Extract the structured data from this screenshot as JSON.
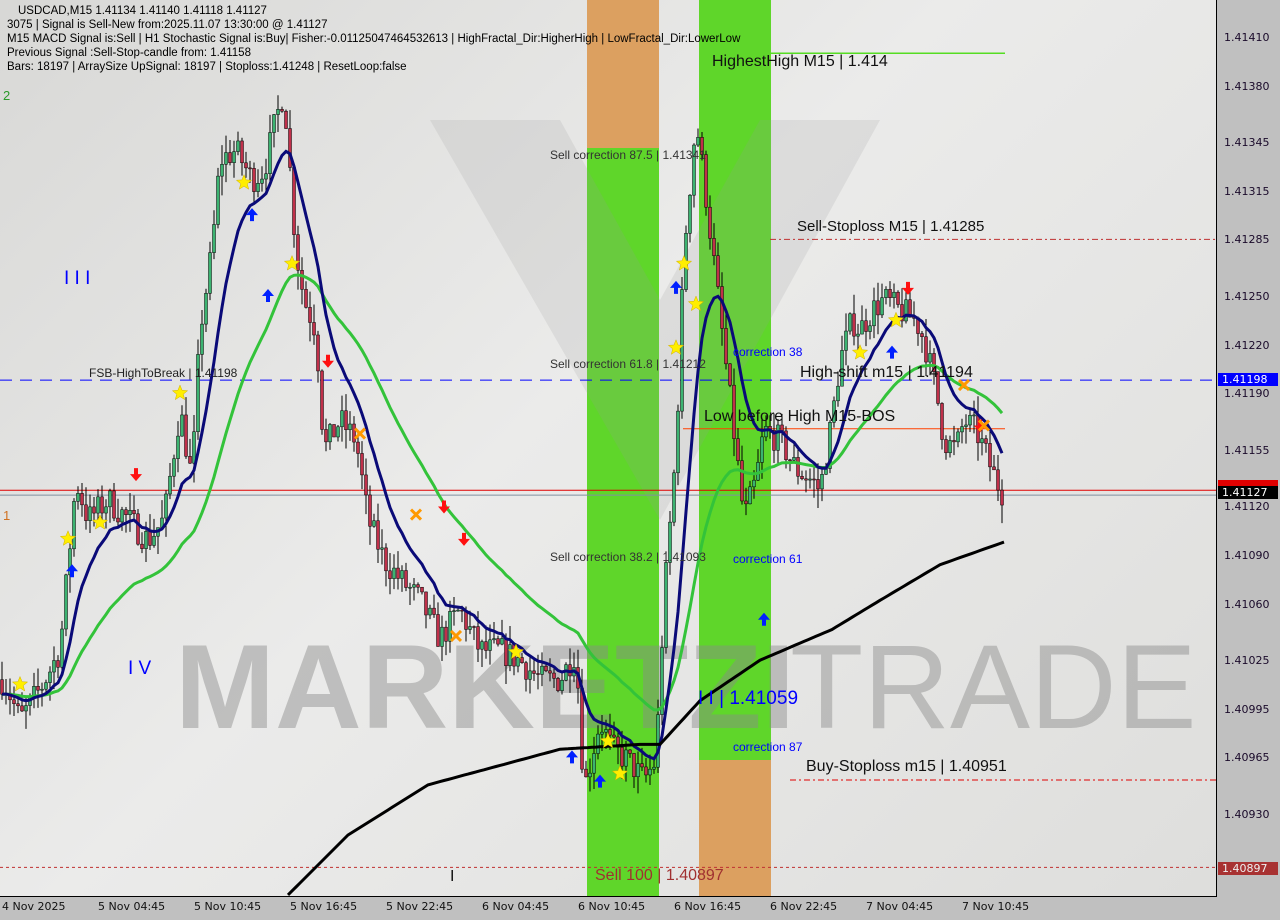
{
  "header": {
    "line1": "USDCAD,M15  1.41134 1.41140 1.41118 1.41127",
    "line2": "3075 | Signal is Sell-New from:2025.11.07 13:30:00 @ 1.41127",
    "line3": "M15 MACD Signal is:Sell | H1 Stochastic Signal is:Buy| Fisher:-0.01125047464532613 | HighFractal_Dir:HigherHigh | LowFractal_Dir:LowerLow",
    "line4": "Previous Signal :Sell-Stop-candle from: 1.41158",
    "line5": "Bars: 18197 | ArraySize UpSignal: 18197 | Stoploss:1.41248 | ResetLoop:false"
  },
  "watermark": {
    "left": "MARKETZI",
    "right": "TRADE"
  },
  "labels": {
    "highest_high": "HighestHigh   M15 | 1.414",
    "sell_stoploss": "Sell-Stoploss M15 | 1.41285",
    "sell_corr_875": "Sell correction 87.5 | 1.41341",
    "sell_corr_618": "Sell correction 61.8 | 1.41212",
    "sell_corr_382": "Sell correction 38.2 | 1.41093",
    "correction_38": "correction 38",
    "correction_61": "correction 61",
    "correction_87": "correction 87",
    "high_shift": "High-shift m15 | 1.41194",
    "low_before_high": "Low before High   M15-BOS",
    "fsb": "FSB-HighToBreak | 1.41198",
    "buy_stoploss": "Buy-Stoploss m15 | 1.40951",
    "sell_100": "Sell 100 | 1.40897",
    "wave_ii": "I I | 1.41059",
    "wave_iii": "I I I",
    "wave_iv": "I V",
    "wave_i": "I",
    "num_2": "2",
    "num_1": "1"
  },
  "price_tags": {
    "fsb": "1.41198",
    "current": "1.41127",
    "sell100": "1.40897"
  },
  "colors": {
    "bull": "#3cb371",
    "bear": "#c0304a",
    "fast_ma": "#0a0a78",
    "mid_ma": "#33c33a",
    "slow_ma": "#000000",
    "band_green": "#5fd62a",
    "band_orange": "#dca060",
    "fsb_line": "#0000ff",
    "price_line": "#e00000"
  },
  "chart_data": {
    "type": "candlestick",
    "symbol": "USDCAD",
    "timeframe": "M15",
    "ylim": [
      1.4087,
      1.4143
    ],
    "y_ticks": [
      "1.41410",
      "1.41380",
      "1.41345",
      "1.41315",
      "1.41285",
      "1.41250",
      "1.41220",
      "1.41190",
      "1.41155",
      "1.41120",
      "1.41090",
      "1.41060",
      "1.41025",
      "1.40995",
      "1.40965",
      "1.40930"
    ],
    "x_ticks": [
      "4 Nov 2025",
      "5 Nov 04:45",
      "5 Nov 10:45",
      "5 Nov 16:45",
      "5 Nov 22:45",
      "6 Nov 04:45",
      "6 Nov 10:45",
      "6 Nov 16:45",
      "6 Nov 22:45",
      "7 Nov 04:45",
      "7 Nov 10:45"
    ],
    "close_path": [
      [
        "11-04 23:00",
        1.41013
      ],
      [
        "11-05 00:00",
        1.40988
      ],
      [
        "11-05 01:15",
        1.41007
      ],
      [
        "11-05 02:30",
        1.41031
      ],
      [
        "11-05 03:30",
        1.41136
      ],
      [
        "11-05 04:15",
        1.41112
      ],
      [
        "11-05 05:30",
        1.41124
      ],
      [
        "11-05 06:45",
        1.41112
      ],
      [
        "11-05 08:00",
        1.41099
      ],
      [
        "11-05 09:00",
        1.41112
      ],
      [
        "11-05 10:00",
        1.4118
      ],
      [
        "11-05 10:45",
        1.41136
      ],
      [
        "11-05 11:15",
        1.41229
      ],
      [
        "11-05 12:00",
        1.41278
      ],
      [
        "11-05 12:30",
        1.41334
      ],
      [
        "11-05 13:30",
        1.4134
      ],
      [
        "11-05 14:30",
        1.41322
      ],
      [
        "11-05 15:15",
        1.41328
      ],
      [
        "11-05 16:00",
        1.41359
      ],
      [
        "11-05 16:30",
        1.41377
      ],
      [
        "11-05 17:15",
        1.41278
      ],
      [
        "11-05 17:45",
        1.41248
      ],
      [
        "11-05 18:30",
        1.41229
      ],
      [
        "11-05 19:00",
        1.41155
      ],
      [
        "11-05 20:00",
        1.41173
      ],
      [
        "11-05 21:00",
        1.41161
      ],
      [
        "11-05 21:45",
        1.41112
      ],
      [
        "11-05 22:45",
        1.41087
      ],
      [
        "11-05 23:45",
        1.41075
      ],
      [
        "11-06 01:00",
        1.41062
      ],
      [
        "11-06 02:15",
        1.41038
      ],
      [
        "11-06 03:30",
        1.41056
      ],
      [
        "11-06 04:45",
        1.41031
      ],
      [
        "11-06 06:00",
        1.41031
      ],
      [
        "11-06 07:15",
        1.41025
      ],
      [
        "11-06 08:30",
        1.41013
      ],
      [
        "11-06 09:45",
        1.41013
      ],
      [
        "11-06 10:45",
        1.41031
      ],
      [
        "11-06 11:15",
        1.40945
      ],
      [
        "11-06 12:15",
        1.40988
      ],
      [
        "11-06 13:00",
        1.4097
      ],
      [
        "11-06 14:00",
        1.40963
      ],
      [
        "11-06 15:00",
        1.40951
      ],
      [
        "11-06 15:45",
        1.40963
      ],
      [
        "11-06 16:15",
        1.41062
      ],
      [
        "11-06 17:00",
        1.41155
      ],
      [
        "11-06 17:30",
        1.41278
      ],
      [
        "11-06 18:15",
        1.41359
      ],
      [
        "11-06 18:45",
        1.41322
      ],
      [
        "11-06 19:30",
        1.4126
      ],
      [
        "11-06 20:00",
        1.41217
      ],
      [
        "11-06 20:45",
        1.41155
      ],
      [
        "11-06 21:15",
        1.41112
      ],
      [
        "11-06 22:00",
        1.41136
      ],
      [
        "11-06 22:30",
        1.41167
      ],
      [
        "11-06 23:30",
        1.41161
      ],
      [
        "11-07 00:30",
        1.41143
      ],
      [
        "11-07 01:30",
        1.41136
      ],
      [
        "11-07 02:00",
        1.4113
      ],
      [
        "11-07 02:45",
        1.41173
      ],
      [
        "11-07 03:15",
        1.4121
      ],
      [
        "11-07 04:00",
        1.41235
      ],
      [
        "11-07 04:30",
        1.41229
      ],
      [
        "11-07 05:15",
        1.41241
      ],
      [
        "11-07 06:00",
        1.41248
      ],
      [
        "11-07 07:00",
        1.41241
      ],
      [
        "11-07 08:00",
        1.41235
      ],
      [
        "11-07 08:30",
        1.41223
      ],
      [
        "11-07 09:15",
        1.41192
      ],
      [
        "11-07 09:45",
        1.41161
      ],
      [
        "11-07 10:30",
        1.41155
      ],
      [
        "11-07 11:00",
        1.41173
      ],
      [
        "11-07 11:45",
        1.41167
      ],
      [
        "11-07 12:15",
        1.41155
      ],
      [
        "11-07 13:00",
        1.41136
      ],
      [
        "11-07 13:30",
        1.41127
      ]
    ],
    "slow_ma": [
      [
        "11-05 16:45",
        1.4088
      ],
      [
        "11-05 20:30",
        1.40917
      ],
      [
        "11-06 01:30",
        1.40948
      ],
      [
        "11-06 06:00",
        1.4096
      ],
      [
        "11-06 09:45",
        1.4097
      ],
      [
        "11-06 14:45",
        1.40973
      ],
      [
        "11-06 16:00",
        1.40973
      ],
      [
        "11-06 18:30",
        1.41
      ],
      [
        "11-06 22:15",
        1.41025
      ],
      [
        "11-07 02:45",
        1.41044
      ],
      [
        "11-07 05:45",
        1.41062
      ],
      [
        "11-07 09:30",
        1.41084
      ],
      [
        "11-07 13:30",
        1.41098
      ]
    ],
    "levels": {
      "fsb_high_to_break": 1.41198,
      "current": 1.41127,
      "bid_line": 1.4113,
      "sell_stoploss": 1.41285,
      "buy_stoploss": 1.40951,
      "sell_100": 1.40897,
      "highest_high": 1.414,
      "low_before_high": 1.41168
    },
    "markers": [
      {
        "type": "star",
        "t": "11-05 00:00",
        "p": 1.4101
      },
      {
        "type": "star",
        "t": "11-05 03:00",
        "p": 1.411
      },
      {
        "type": "star",
        "t": "11-05 05:00",
        "p": 1.4111
      },
      {
        "type": "star",
        "t": "11-05 10:00",
        "p": 1.4119
      },
      {
        "type": "star",
        "t": "11-05 14:00",
        "p": 1.4132
      },
      {
        "type": "star",
        "t": "11-05 17:00",
        "p": 1.4127
      },
      {
        "type": "star",
        "t": "11-06 07:00",
        "p": 1.4103
      },
      {
        "type": "star",
        "t": "11-06 12:45",
        "p": 1.40975
      },
      {
        "type": "star",
        "t": "11-06 13:30",
        "p": 1.40955
      },
      {
        "type": "star",
        "t": "11-06 17:00",
        "p": 1.41218
      },
      {
        "type": "star",
        "t": "11-06 17:30",
        "p": 1.4127
      },
      {
        "type": "star",
        "t": "11-06 18:15",
        "p": 1.41245
      },
      {
        "type": "star",
        "t": "11-07 04:30",
        "p": 1.41215
      },
      {
        "type": "star",
        "t": "11-07 06:45",
        "p": 1.41235
      },
      {
        "type": "up",
        "t": "11-05 03:15",
        "p": 1.4108
      },
      {
        "type": "up",
        "t": "11-05 14:30",
        "p": 1.413
      },
      {
        "type": "up",
        "t": "11-05 15:30",
        "p": 1.4125
      },
      {
        "type": "up",
        "t": "11-06 10:30",
        "p": 1.40965
      },
      {
        "type": "up",
        "t": "11-06 12:15",
        "p": 1.4095
      },
      {
        "type": "up",
        "t": "11-06 22:30",
        "p": 1.4105
      },
      {
        "type": "up",
        "t": "11-06 17:00",
        "p": 1.41255
      },
      {
        "type": "up",
        "t": "11-07 06:30",
        "p": 1.41215
      },
      {
        "type": "down",
        "t": "11-05 07:15",
        "p": 1.4114
      },
      {
        "type": "down",
        "t": "11-05 19:15",
        "p": 1.4121
      },
      {
        "type": "down",
        "t": "11-06 02:30",
        "p": 1.4112
      },
      {
        "type": "down",
        "t": "11-06 03:45",
        "p": 1.411
      },
      {
        "type": "down",
        "t": "11-07 07:30",
        "p": 1.41255
      },
      {
        "type": "down",
        "t": "11-07 12:00",
        "p": 1.4117
      },
      {
        "type": "cross",
        "t": "11-05 21:15",
        "p": 1.41165
      },
      {
        "type": "cross",
        "t": "11-06 00:45",
        "p": 1.41115
      },
      {
        "type": "cross",
        "t": "11-06 03:15",
        "p": 1.4104
      },
      {
        "type": "cross",
        "t": "11-07 11:00",
        "p": 1.41195
      },
      {
        "type": "cross",
        "t": "11-07 12:15",
        "p": 1.4117
      }
    ]
  }
}
